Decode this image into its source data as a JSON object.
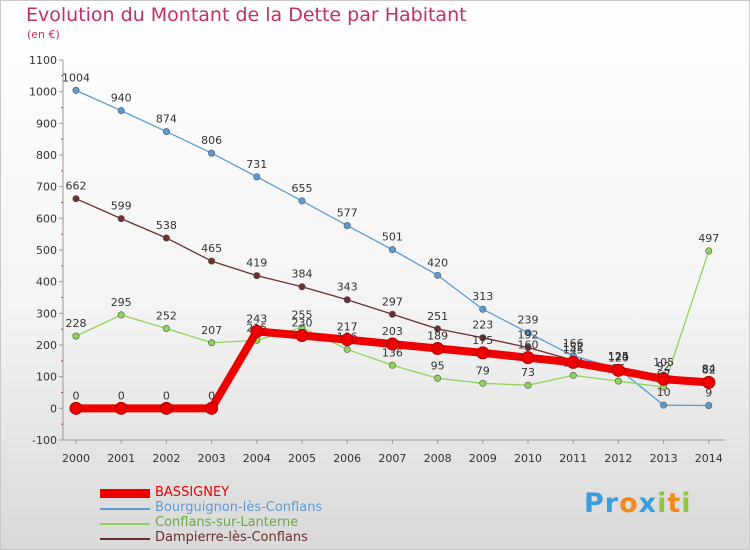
{
  "header": {
    "title": "Evolution du Montant de la Dette par Habitant",
    "unit": "(en €)"
  },
  "logo": {
    "text": "Proxiti"
  },
  "chart_data": {
    "type": "line",
    "title": "Evolution du Montant de la Dette par Habitant",
    "ylabel": "(en €)",
    "x": [
      "2000",
      "2001",
      "2002",
      "2003",
      "2004",
      "2005",
      "2006",
      "2007",
      "2008",
      "2009",
      "2010",
      "2011",
      "2012",
      "2013",
      "2014"
    ],
    "ylim": [
      -100,
      1100
    ],
    "yticks": [
      -100,
      0,
      100,
      200,
      300,
      400,
      500,
      600,
      700,
      800,
      900,
      1000,
      1100
    ],
    "grid": false,
    "legend": "bottom-left",
    "series": [
      {
        "name": "Bourguignon-lès-Conflans",
        "color": "#5b9bd5",
        "values": [
          1004,
          940,
          874,
          806,
          731,
          655,
          577,
          501,
          420,
          313,
          239,
          166,
          125,
          10,
          9
        ]
      },
      {
        "name": "Conflans-sur-Lanterne",
        "color": "#8ed45a",
        "values": [
          228,
          295,
          252,
          207,
          215,
          255,
          186,
          136,
          95,
          79,
          73,
          104,
          86,
          67,
          497
        ]
      },
      {
        "name": "Dampierre-lès-Conflans",
        "color": "#6b2f2f",
        "values": [
          662,
          599,
          538,
          465,
          419,
          384,
          343,
          297,
          251,
          223,
          192,
          152,
          124,
          105,
          84
        ]
      },
      {
        "name": "BASSIGNEY",
        "color": "#ee0000",
        "values": [
          0,
          0,
          0,
          0,
          243,
          230,
          217,
          203,
          189,
          175,
          160,
          145,
          120,
          92,
          82
        ]
      }
    ]
  }
}
